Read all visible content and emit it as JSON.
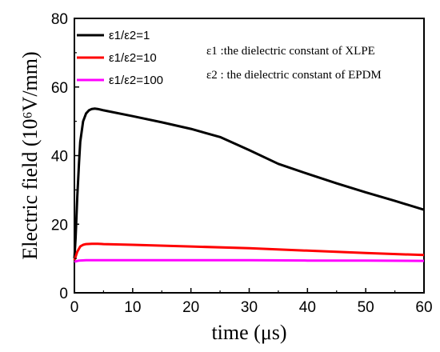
{
  "chart_data": {
    "type": "line",
    "title": "",
    "xlabel": "time (μs)",
    "ylabel": "Electric field (10⁶V/mm)",
    "xlim": [
      0,
      60
    ],
    "ylim": [
      0,
      80
    ],
    "xticks": [
      0,
      10,
      20,
      30,
      40,
      50,
      60
    ],
    "yticks": [
      0,
      20,
      40,
      60,
      80
    ],
    "grid": false,
    "legend_position": "top-left",
    "series": [
      {
        "name": "ε1/ε2=1",
        "color": "#000000",
        "x": [
          0,
          0.2,
          0.5,
          0.8,
          1.0,
          1.5,
          2.0,
          2.5,
          3.0,
          3.5,
          4.0,
          5,
          10,
          15,
          20,
          25,
          30,
          35,
          40,
          45,
          50,
          55,
          60
        ],
        "y": [
          10,
          16,
          28,
          38,
          44,
          50,
          52.3,
          53.2,
          53.6,
          53.7,
          53.6,
          53.2,
          51.5,
          49.7,
          47.8,
          45.4,
          41.6,
          37.6,
          34.7,
          31.9,
          29.3,
          26.8,
          24.2
        ]
      },
      {
        "name": "ε1/ε2=10",
        "color": "#ff0000",
        "x": [
          0,
          0.2,
          0.5,
          1.0,
          1.5,
          2.0,
          3.0,
          4.0,
          5,
          10,
          20,
          30,
          40,
          50,
          60
        ],
        "y": [
          9.5,
          10.5,
          12.0,
          13.5,
          14.0,
          14.2,
          14.3,
          14.3,
          14.2,
          14.0,
          13.5,
          13.0,
          12.3,
          11.6,
          11.0
        ]
      },
      {
        "name": "ε1/ε2=100",
        "color": "#ff00ff",
        "x": [
          0,
          0.3,
          0.8,
          2,
          10,
          20,
          30,
          40,
          50,
          60
        ],
        "y": [
          9.0,
          9.2,
          9.4,
          9.5,
          9.5,
          9.5,
          9.5,
          9.4,
          9.4,
          9.3
        ]
      }
    ],
    "annotations": [
      "ε1 :the dielectric constant of XLPE",
      "ε2 : the dielectric constant of EPDM"
    ]
  }
}
